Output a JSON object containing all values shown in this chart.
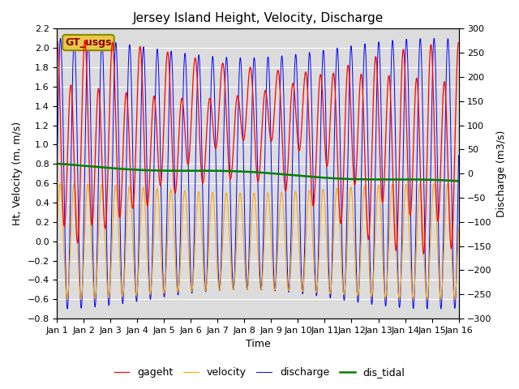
{
  "title": "Jersey Island Height, Velocity, Discharge",
  "xlabel": "Time",
  "ylabel_left": "Ht, Velocity (m, m/s)",
  "ylabel_right": "Discharge (m3/s)",
  "ylim_left": [
    -0.8,
    2.2
  ],
  "ylim_right": [
    -300,
    300
  ],
  "xlim": [
    0,
    15
  ],
  "xtick_labels": [
    "Jan 1",
    "Jan 2",
    "Jan 3",
    "Jan 4",
    "Jan 5",
    "Jan 6",
    "Jan 7",
    "Jan 8",
    "Jan 9",
    "Jan 10",
    "Jan 11",
    "Jan 12",
    "Jan 13",
    "Jan 14",
    "Jan 15",
    "Jan 16"
  ],
  "legend_labels": [
    "gageht",
    "velocity",
    "discharge",
    "dis_tidal"
  ],
  "legend_colors": [
    "red",
    "orange",
    "blue",
    "green"
  ],
  "gt_usgs_label": "GT_usgs",
  "n_points": 3000,
  "background_color": "#dcdcdc",
  "grid_color": "white",
  "tidal_period_days": 0.517,
  "spring_neap_period_days": 14.0
}
